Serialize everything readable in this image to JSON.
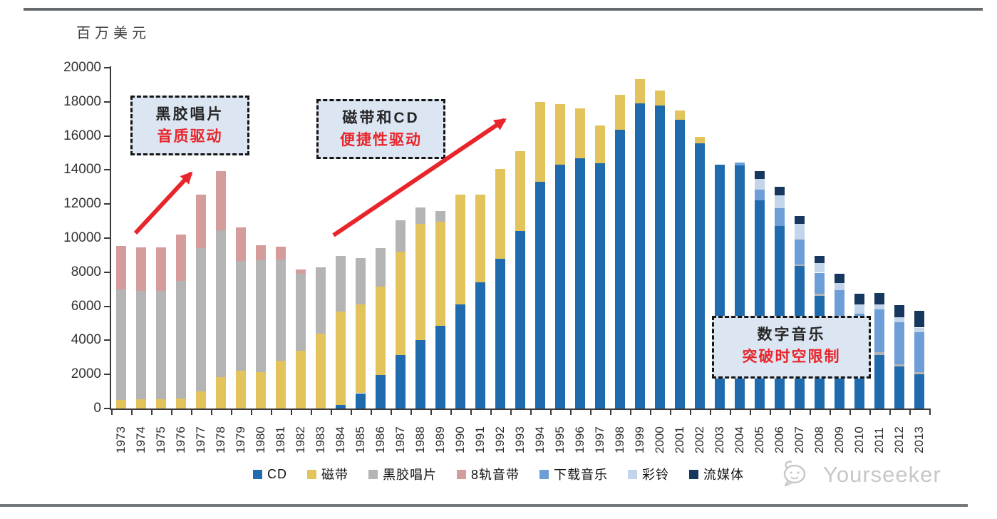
{
  "page": {
    "unit_label": "百万美元",
    "watermark": "Yourseeker"
  },
  "annotations": [
    {
      "line1": "黑胶唱片",
      "line2": "音质驱动"
    },
    {
      "line1": "磁带和CD",
      "line2": "便捷性驱动"
    },
    {
      "line1": "数字音乐",
      "line2": "突破时空限制"
    }
  ],
  "chart_data": {
    "type": "bar",
    "stacked": true,
    "title": "",
    "ylabel": "百万美元",
    "xlabel": "",
    "ylim": [
      0,
      20000
    ],
    "yticks": [
      0,
      2000,
      4000,
      6000,
      8000,
      10000,
      12000,
      14000,
      16000,
      18000,
      20000
    ],
    "grid": false,
    "legend_position": "bottom",
    "categories": [
      1973,
      1974,
      1975,
      1976,
      1977,
      1978,
      1979,
      1980,
      1981,
      1982,
      1983,
      1984,
      1985,
      1986,
      1987,
      1988,
      1989,
      1990,
      1991,
      1992,
      1993,
      1994,
      1995,
      1996,
      1997,
      1998,
      1999,
      2000,
      2001,
      2002,
      2003,
      2004,
      2005,
      2006,
      2007,
      2008,
      2009,
      2010,
      2011,
      2012,
      2013
    ],
    "series": [
      {
        "key": "cd",
        "name": "CD",
        "color": "#1F6BAE",
        "values": [
          0,
          0,
          0,
          0,
          0,
          0,
          0,
          0,
          0,
          0,
          0,
          200,
          900,
          1950,
          3150,
          4000,
          4850,
          6100,
          7400,
          8800,
          10400,
          13300,
          14300,
          14700,
          14400,
          16350,
          17900,
          17800,
          16950,
          15550,
          14300,
          14250,
          12200,
          10700,
          8350,
          6600,
          4300,
          3300,
          3150,
          2450,
          2000
        ]
      },
      {
        "key": "cassette",
        "name": "磁带",
        "color": "#E2C35C",
        "values": [
          500,
          550,
          550,
          600,
          1000,
          1850,
          2200,
          2150,
          2800,
          3400,
          4400,
          5500,
          5200,
          5200,
          6050,
          6850,
          6100,
          6450,
          5150,
          5250,
          4700,
          4700,
          3550,
          2900,
          2200,
          2050,
          1450,
          850,
          550,
          400,
          0,
          0,
          0,
          0,
          0,
          0,
          0,
          0,
          0,
          0,
          0
        ]
      },
      {
        "key": "vinyl",
        "name": "黑胶唱片",
        "color": "#B4B4B4",
        "values": [
          6500,
          6350,
          6350,
          6900,
          8400,
          8600,
          6450,
          6550,
          5950,
          4500,
          3900,
          3250,
          2750,
          2250,
          1850,
          950,
          650,
          0,
          0,
          0,
          0,
          0,
          0,
          0,
          0,
          0,
          0,
          0,
          0,
          0,
          0,
          0,
          0,
          0,
          100,
          120,
          80,
          90,
          150,
          150,
          150
        ]
      },
      {
        "key": "eight-track",
        "name": "8轨音带",
        "color": "#D59C9C",
        "values": [
          2550,
          2550,
          2550,
          2700,
          3150,
          3500,
          2000,
          900,
          750,
          250,
          0,
          0,
          0,
          0,
          0,
          0,
          0,
          0,
          0,
          0,
          0,
          0,
          0,
          0,
          0,
          0,
          0,
          0,
          0,
          0,
          0,
          0,
          0,
          0,
          0,
          0,
          0,
          0,
          0,
          0,
          0
        ]
      },
      {
        "key": "download",
        "name": "下载音乐",
        "color": "#6D9ED8",
        "values": [
          0,
          0,
          0,
          0,
          0,
          0,
          0,
          0,
          0,
          0,
          0,
          0,
          0,
          0,
          0,
          0,
          0,
          0,
          0,
          0,
          0,
          0,
          0,
          0,
          0,
          0,
          0,
          0,
          0,
          0,
          0,
          200,
          630,
          1050,
          1470,
          1250,
          2550,
          2160,
          2500,
          2450,
          2350
        ]
      },
      {
        "key": "ringtone",
        "name": "彩铃",
        "color": "#C3D5EA",
        "values": [
          0,
          0,
          0,
          0,
          0,
          0,
          0,
          0,
          0,
          0,
          0,
          0,
          0,
          0,
          0,
          0,
          0,
          0,
          0,
          0,
          0,
          0,
          0,
          0,
          0,
          0,
          0,
          0,
          0,
          0,
          0,
          0,
          630,
          770,
          900,
          550,
          420,
          560,
          300,
          300,
          250
        ]
      },
      {
        "key": "streaming",
        "name": "流媒体",
        "color": "#17375E",
        "values": [
          0,
          0,
          0,
          0,
          0,
          0,
          0,
          0,
          0,
          0,
          0,
          0,
          0,
          0,
          0,
          0,
          0,
          0,
          0,
          0,
          0,
          0,
          0,
          0,
          0,
          0,
          0,
          0,
          0,
          0,
          0,
          0,
          490,
          480,
          490,
          420,
          550,
          630,
          700,
          700,
          1000
        ]
      }
    ]
  }
}
